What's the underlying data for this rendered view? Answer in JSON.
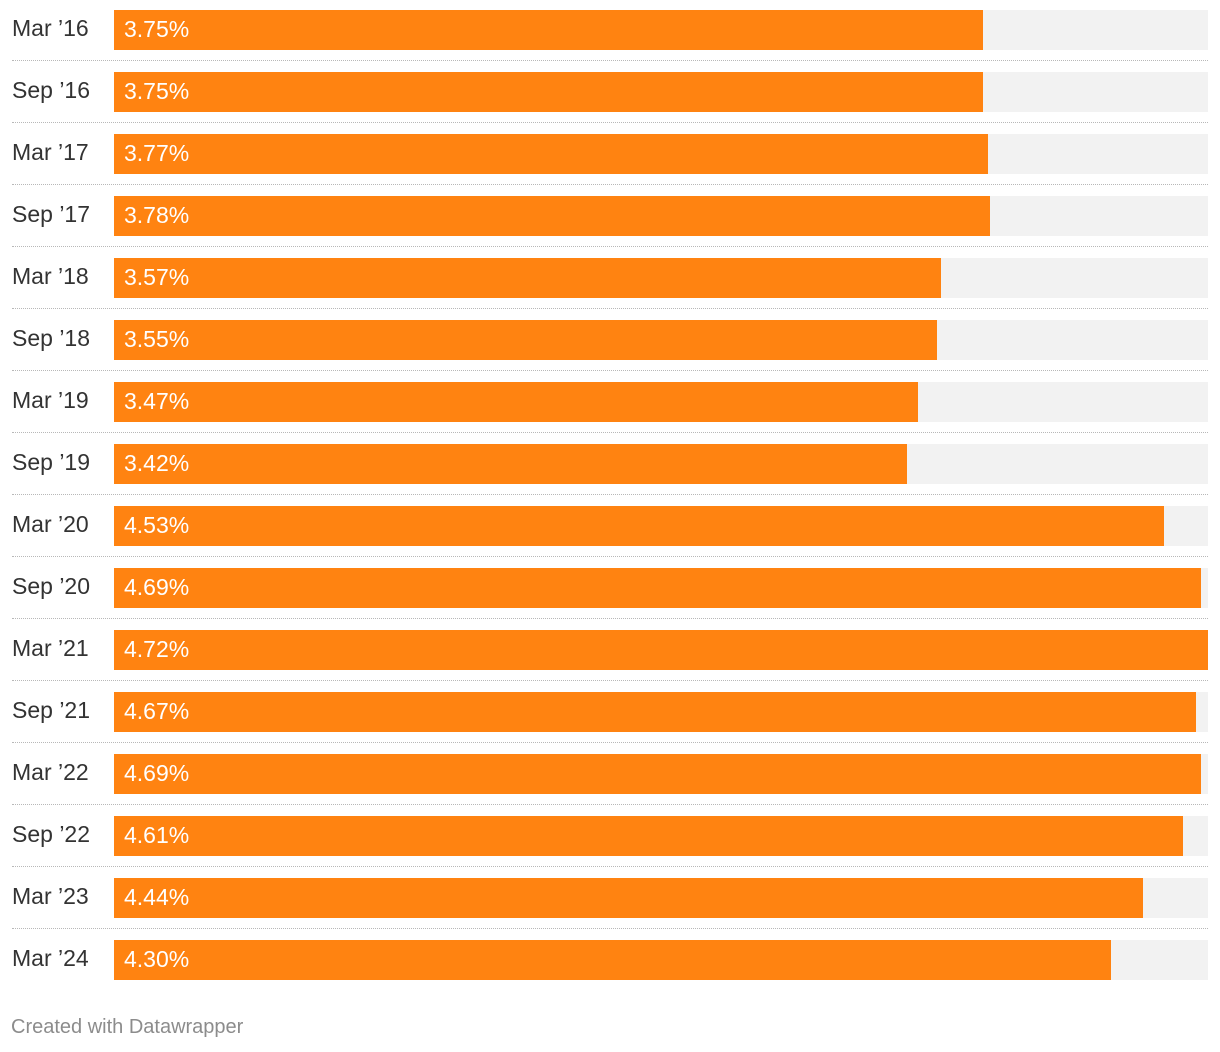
{
  "chart_data": {
    "type": "bar",
    "orientation": "horizontal",
    "categories": [
      "Mar ’16",
      "Sep ’16",
      "Mar ’17",
      "Sep ’17",
      "Mar ’18",
      "Sep ’18",
      "Mar ’19",
      "Sep ’19",
      "Mar ’20",
      "Sep ’20",
      "Mar ’21",
      "Sep ’21",
      "Mar ’22",
      "Sep ’22",
      "Mar ’23",
      "Mar ’24"
    ],
    "values": [
      3.75,
      3.75,
      3.77,
      3.78,
      3.57,
      3.55,
      3.47,
      3.42,
      4.53,
      4.69,
      4.72,
      4.67,
      4.69,
      4.61,
      4.44,
      4.3
    ],
    "value_labels": [
      "3.75%",
      "3.75%",
      "3.77%",
      "3.78%",
      "3.57%",
      "3.55%",
      "3.47%",
      "3.42%",
      "4.53%",
      "4.69%",
      "4.72%",
      "4.67%",
      "4.69%",
      "4.61%",
      "4.44%",
      "4.30%"
    ],
    "xlim": [
      0,
      4.72
    ],
    "grid": false,
    "legend": "none",
    "colors": {
      "bar": "#ff8311",
      "track": "#f2f2f2",
      "label": "#333333",
      "value_label": "#ffffff"
    }
  },
  "footer": {
    "credit": "Created with Datawrapper"
  }
}
